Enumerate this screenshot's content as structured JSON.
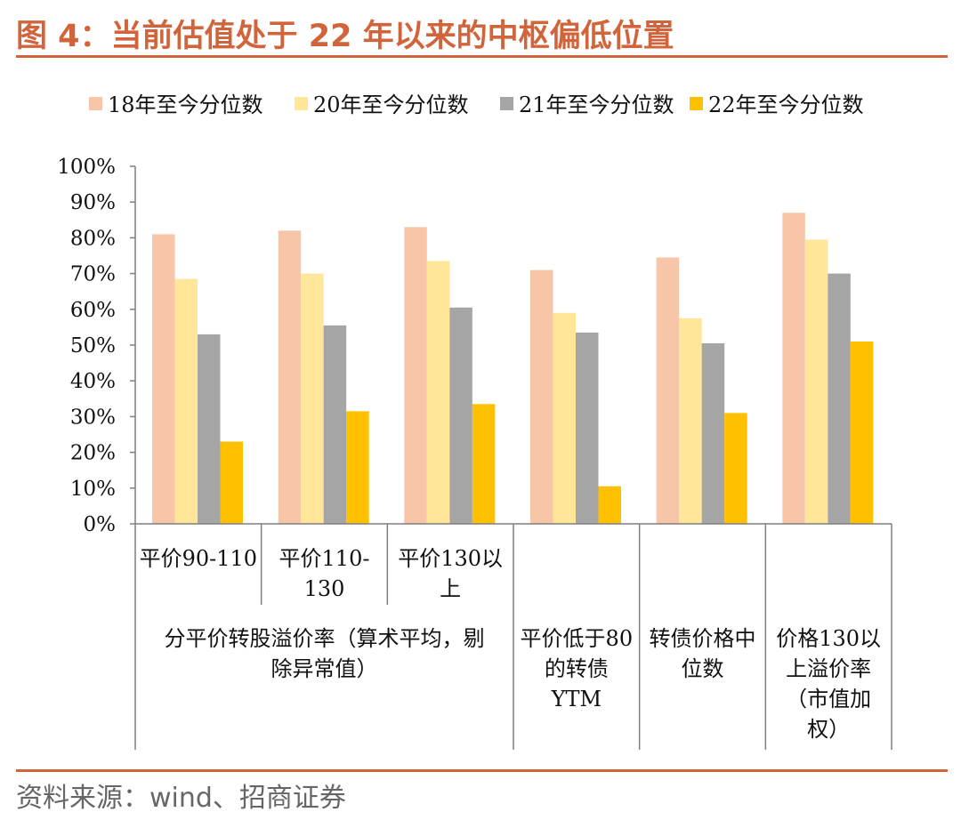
{
  "figure": {
    "title": "图 4：当前估值处于 22 年以来的中枢偏低位置",
    "source": "资料来源：wind、招商证券"
  },
  "chart_data": {
    "type": "bar",
    "title": "图 4：当前估值处于 22 年以来的中枢偏低位置",
    "ylim": [
      0,
      1
    ],
    "yticks": [
      "0%",
      "10%",
      "20%",
      "30%",
      "40%",
      "50%",
      "60%",
      "70%",
      "80%",
      "90%",
      "100%"
    ],
    "legend_position": "top",
    "categories": [
      "平价90-110",
      "平价110-130",
      "平价130以上",
      "平价低于80的转债YTM",
      "转债价格中位数",
      "价格130以上溢价率（市值加权）"
    ],
    "category_lines": [
      [
        "平价90-110"
      ],
      [
        "平价110-",
        "130"
      ],
      [
        "平价130以",
        "上"
      ],
      [
        "平价低于80",
        "的转债",
        "YTM"
      ],
      [
        "转债价格中",
        "位数"
      ],
      [
        "价格130以",
        "上溢价率",
        "（市值加",
        "权）"
      ]
    ],
    "group_label_lines": [
      "分平价转股溢价率（算术平均，剔",
      "除异常值）"
    ],
    "series": [
      {
        "name": "18年至今分位数",
        "color": "#f7c6a8",
        "values": [
          0.81,
          0.82,
          0.83,
          0.71,
          0.745,
          0.87
        ]
      },
      {
        "name": "20年至今分位数",
        "color": "#ffe699",
        "values": [
          0.685,
          0.7,
          0.735,
          0.59,
          0.575,
          0.795
        ]
      },
      {
        "name": "21年至今分位数",
        "color": "#a5a5a5",
        "values": [
          0.53,
          0.555,
          0.605,
          0.535,
          0.505,
          0.7
        ]
      },
      {
        "name": "22年至今分位数",
        "color": "#ffc000",
        "values": [
          0.23,
          0.315,
          0.335,
          0.105,
          0.31,
          0.51
        ]
      }
    ]
  }
}
